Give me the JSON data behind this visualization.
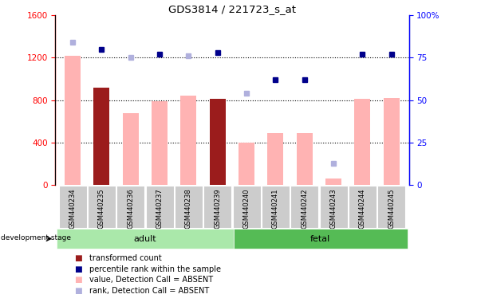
{
  "title": "GDS3814 / 221723_s_at",
  "samples": [
    "GSM440234",
    "GSM440235",
    "GSM440236",
    "GSM440237",
    "GSM440238",
    "GSM440239",
    "GSM440240",
    "GSM440241",
    "GSM440242",
    "GSM440243",
    "GSM440244",
    "GSM440245"
  ],
  "bar_values": [
    1220,
    920,
    680,
    790,
    840,
    810,
    400,
    490,
    490,
    60,
    810,
    820
  ],
  "bar_colors": [
    "#ffb3b3",
    "#9b1c1c",
    "#ffb3b3",
    "#ffb3b3",
    "#ffb3b3",
    "#9b1c1c",
    "#ffb3b3",
    "#ffb3b3",
    "#ffb3b3",
    "#ffb3b3",
    "#ffb3b3",
    "#ffb3b3"
  ],
  "rank_absent_pct": [
    84,
    null,
    75,
    null,
    76,
    null,
    54,
    null,
    null,
    13,
    null,
    null
  ],
  "rank_present_pct": [
    null,
    80,
    null,
    77,
    null,
    78,
    null,
    62,
    62,
    null,
    77,
    77
  ],
  "ylim_left": [
    0,
    1600
  ],
  "ylim_right": [
    0,
    100
  ],
  "yticks_left": [
    0,
    400,
    800,
    1200,
    1600
  ],
  "yticks_right": [
    0,
    25,
    50,
    75,
    100
  ],
  "adult_color": "#aae8aa",
  "fetal_color": "#55bb55",
  "sample_bg_color": "#cccccc",
  "legend_colors": [
    "#9b1c1c",
    "#00008b",
    "#ffb3b3",
    "#b0b0dd"
  ],
  "legend_labels": [
    "transformed count",
    "percentile rank within the sample",
    "value, Detection Call = ABSENT",
    "rank, Detection Call = ABSENT"
  ]
}
